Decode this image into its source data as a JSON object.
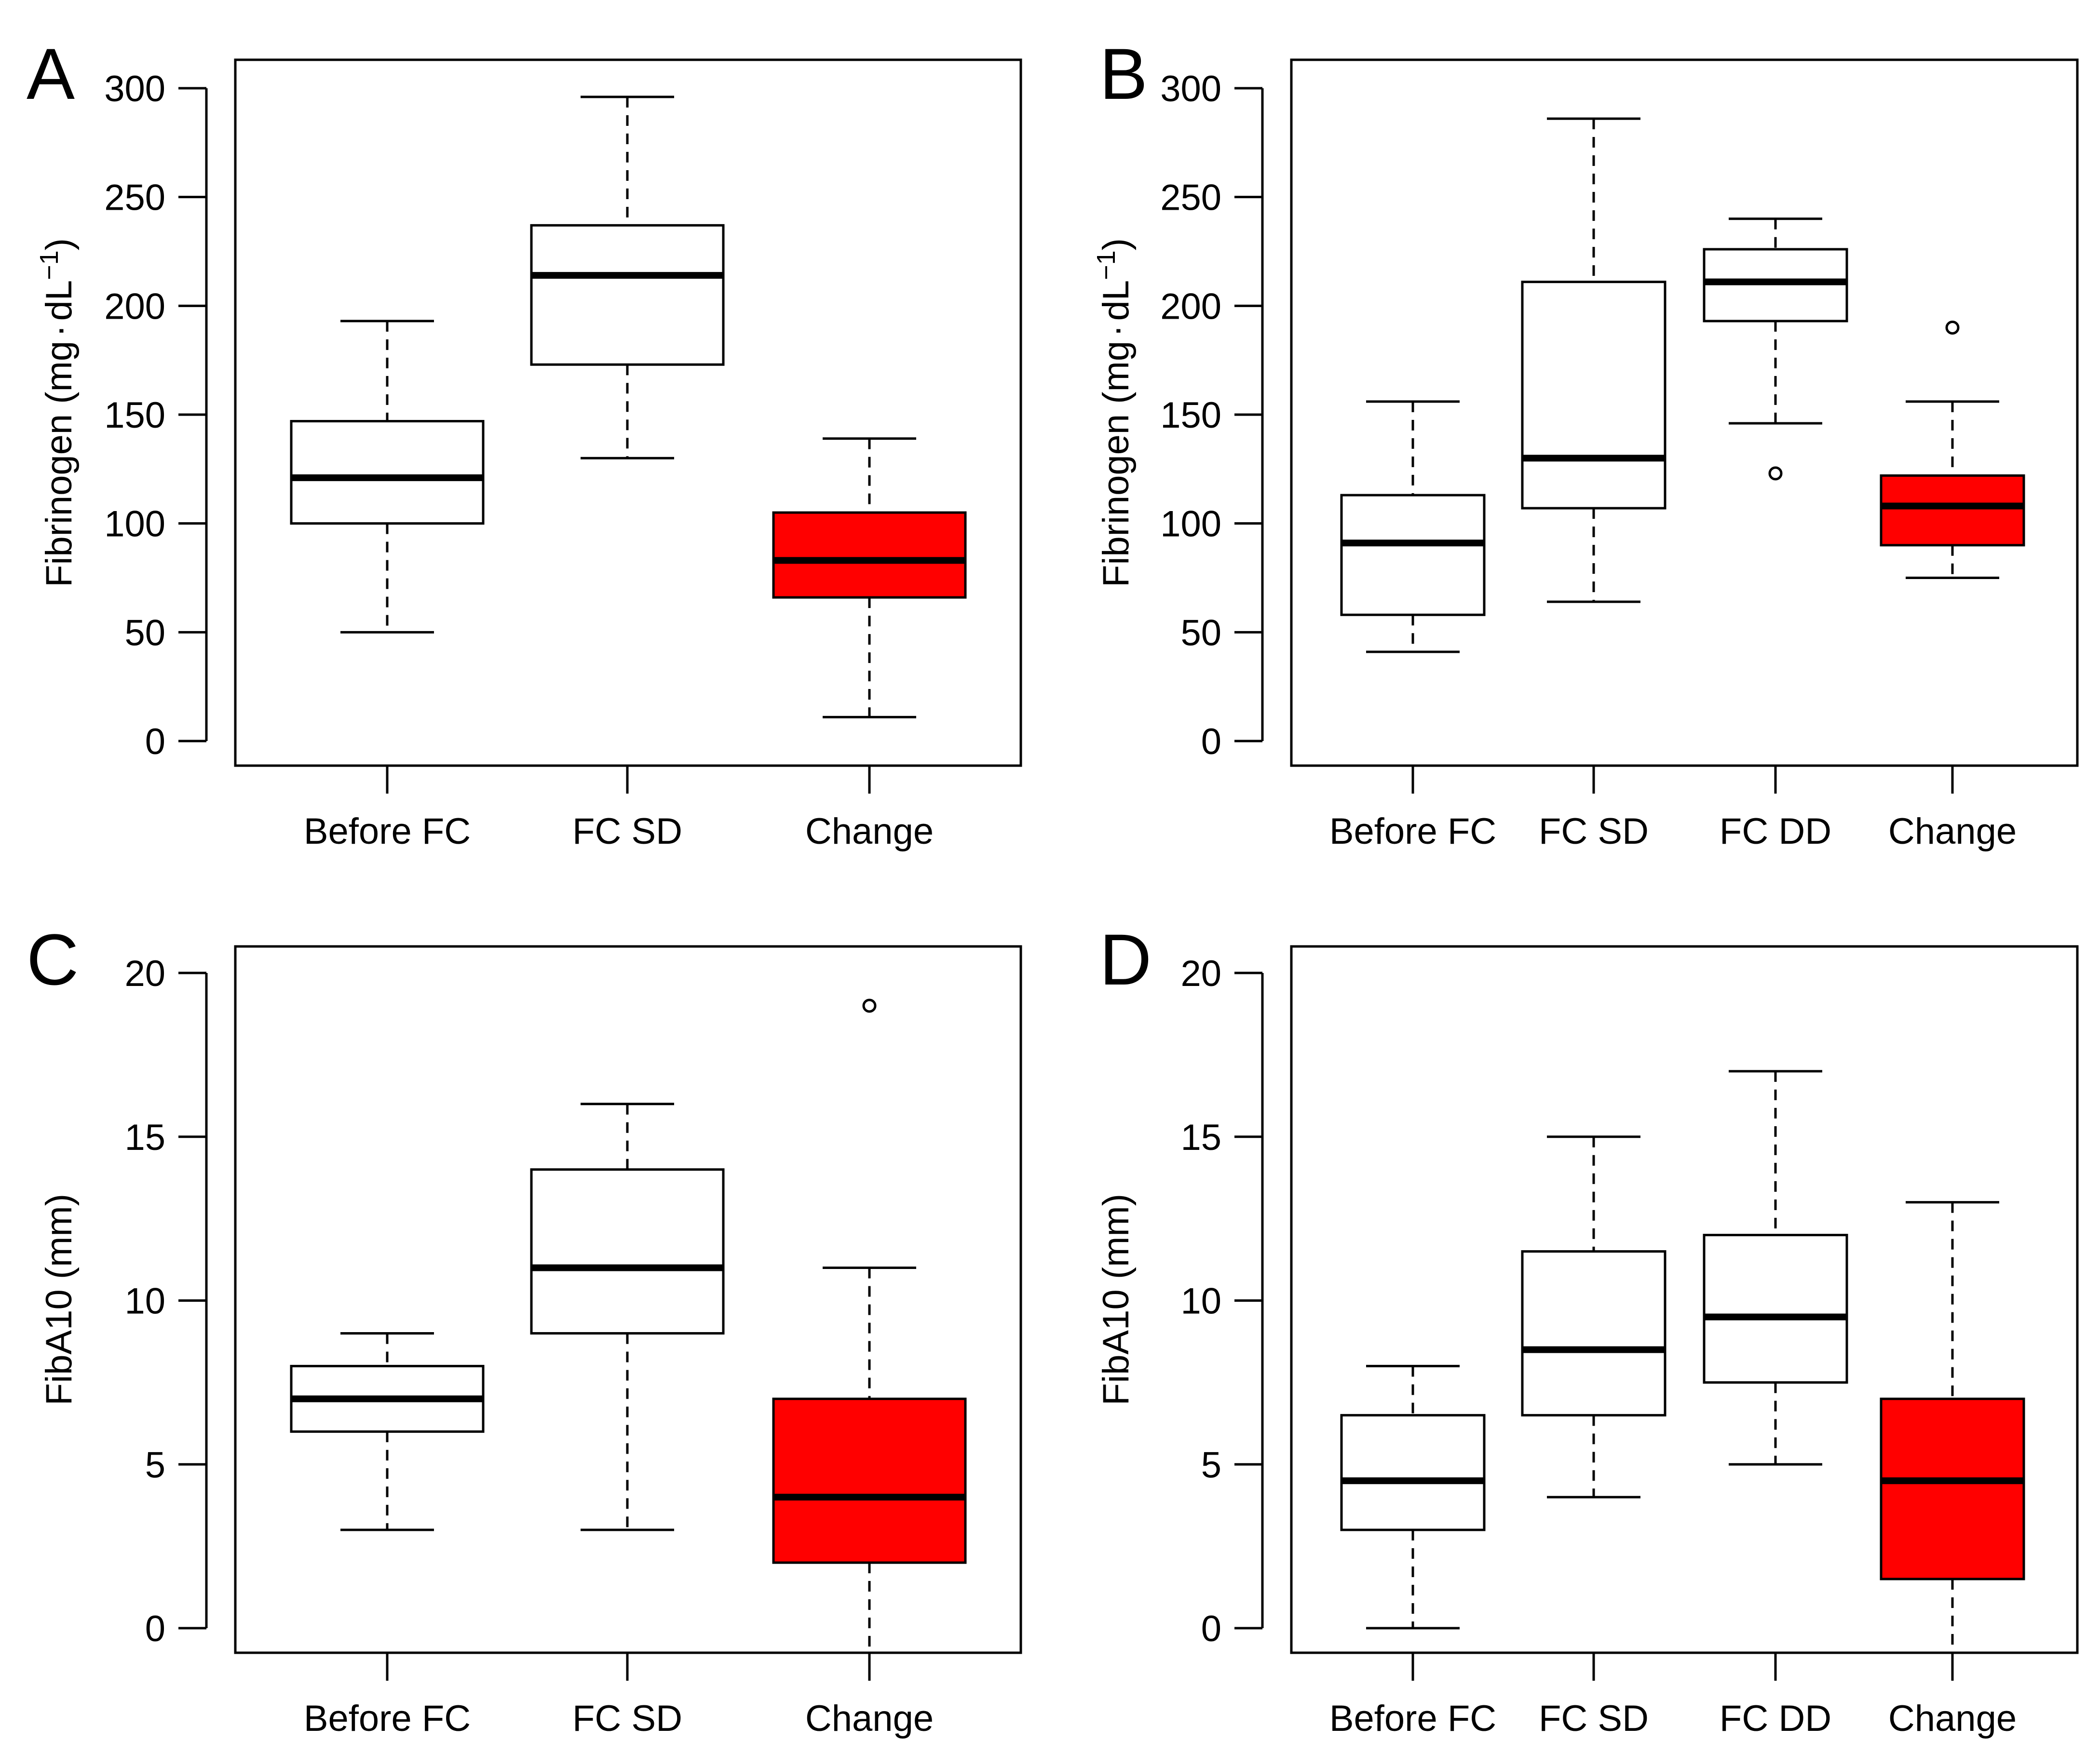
{
  "figure": {
    "colors": {
      "change_fill": "#ff0000",
      "box_fill": "#ffffff",
      "line": "#000000"
    }
  },
  "chart_data": [
    {
      "id": "A",
      "panel_label": "A",
      "type": "boxplot",
      "ylabel": "Fibrinogen (mg·dL⁻¹)",
      "ylabel_main": "Fibrinogen (mg",
      "ylabel_dot": "·",
      "ylabel_unit": "dL",
      "ylabel_sup": "−1",
      "ylabel_close": ")",
      "ylim": [
        0,
        300
      ],
      "yticks": [
        0,
        50,
        100,
        150,
        200,
        250,
        300
      ],
      "categories": [
        "Before FC",
        "FC SD",
        "Change"
      ],
      "boxes": [
        {
          "category": "Before FC",
          "whisker_low": 50,
          "q1": 100,
          "median": 121,
          "q3": 147,
          "whisker_high": 193,
          "outliers": [],
          "fill": "#ffffff"
        },
        {
          "category": "FC SD",
          "whisker_low": 130,
          "q1": 173,
          "median": 214,
          "q3": 237,
          "whisker_high": 296,
          "outliers": [],
          "fill": "#ffffff"
        },
        {
          "category": "Change",
          "whisker_low": 11,
          "q1": 66,
          "median": 83,
          "q3": 105,
          "whisker_high": 139,
          "outliers": [],
          "fill": "#ff0000"
        }
      ]
    },
    {
      "id": "B",
      "panel_label": "B",
      "type": "boxplot",
      "ylabel": "Fibrinogen (mg·dL⁻¹)",
      "ylabel_main": "Fibrinogen (mg",
      "ylabel_dot": "·",
      "ylabel_unit": "dL",
      "ylabel_sup": "−1",
      "ylabel_close": ")",
      "ylim": [
        0,
        300
      ],
      "yticks": [
        0,
        50,
        100,
        150,
        200,
        250,
        300
      ],
      "categories": [
        "Before FC",
        "FC SD",
        "FC DD",
        "Change"
      ],
      "boxes": [
        {
          "category": "Before FC",
          "whisker_low": 41,
          "q1": 58,
          "median": 91,
          "q3": 113,
          "whisker_high": 156,
          "outliers": [],
          "fill": "#ffffff"
        },
        {
          "category": "FC SD",
          "whisker_low": 64,
          "q1": 107,
          "median": 130,
          "q3": 211,
          "whisker_high": 286,
          "outliers": [],
          "fill": "#ffffff"
        },
        {
          "category": "FC DD",
          "whisker_low": 146,
          "q1": 193,
          "median": 211,
          "q3": 226,
          "whisker_high": 240,
          "outliers": [
            123
          ],
          "fill": "#ffffff"
        },
        {
          "category": "Change",
          "whisker_low": 75,
          "q1": 90,
          "median": 108,
          "q3": 122,
          "whisker_high": 156,
          "outliers": [
            190
          ],
          "fill": "#ff0000"
        }
      ]
    },
    {
      "id": "C",
      "panel_label": "C",
      "type": "boxplot",
      "ylabel": "FibA10 (mm)",
      "ylim": [
        0,
        20
      ],
      "yticks": [
        0,
        5,
        10,
        15,
        20
      ],
      "categories": [
        "Before FC",
        "FC SD",
        "Change"
      ],
      "boxes": [
        {
          "category": "Before FC",
          "whisker_low": 3,
          "q1": 6,
          "median": 7,
          "q3": 8,
          "whisker_high": 9,
          "outliers": [],
          "fill": "#ffffff"
        },
        {
          "category": "FC SD",
          "whisker_low": 3,
          "q1": 9,
          "median": 11,
          "q3": 14,
          "whisker_high": 16,
          "outliers": [],
          "fill": "#ffffff"
        },
        {
          "category": "Change",
          "whisker_low": -1,
          "q1": 2,
          "median": 4,
          "q3": 7,
          "whisker_high": 11,
          "outliers": [
            19
          ],
          "fill": "#ff0000"
        }
      ]
    },
    {
      "id": "D",
      "panel_label": "D",
      "type": "boxplot",
      "ylabel": "FibA10 (mm)",
      "ylim": [
        0,
        20
      ],
      "yticks": [
        0,
        5,
        10,
        15,
        20
      ],
      "categories": [
        "Before FC",
        "FC SD",
        "FC DD",
        "Change"
      ],
      "boxes": [
        {
          "category": "Before FC",
          "whisker_low": 0,
          "q1": 3,
          "median": 4.5,
          "q3": 6.5,
          "whisker_high": 8,
          "outliers": [],
          "fill": "#ffffff"
        },
        {
          "category": "FC SD",
          "whisker_low": 4,
          "q1": 6.5,
          "median": 8.5,
          "q3": 11.5,
          "whisker_high": 15,
          "outliers": [],
          "fill": "#ffffff"
        },
        {
          "category": "FC DD",
          "whisker_low": 5,
          "q1": 7.5,
          "median": 9.5,
          "q3": 12,
          "whisker_high": 17,
          "outliers": [],
          "fill": "#ffffff"
        },
        {
          "category": "Change",
          "whisker_low": -1,
          "q1": 1.5,
          "median": 4.5,
          "q3": 7,
          "whisker_high": 13,
          "outliers": [],
          "fill": "#ff0000"
        }
      ]
    }
  ]
}
